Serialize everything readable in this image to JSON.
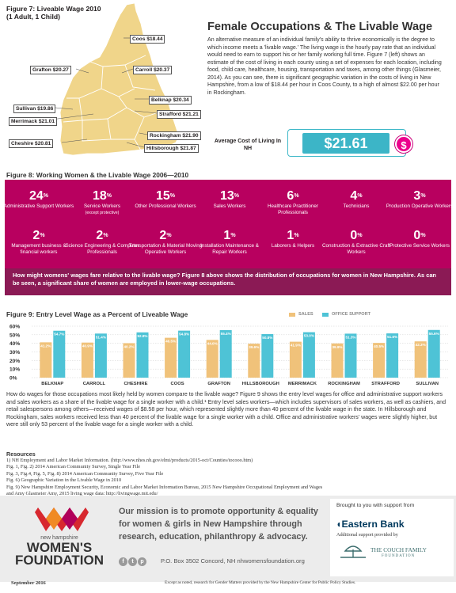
{
  "map": {
    "title_line1": "Figure 7: Liveable Wage 2010",
    "title_line2": "(1 Adult, 1 Child)",
    "counties": [
      {
        "name": "Coos",
        "label": "Coos $18.44"
      },
      {
        "name": "Grafton",
        "label": "Grafton $20.27"
      },
      {
        "name": "Carroll",
        "label": "Carroll $20.37"
      },
      {
        "name": "Belknap",
        "label": "Belknap $20.34"
      },
      {
        "name": "Sullivan",
        "label": "Sullivan $19.86"
      },
      {
        "name": "Merrimack",
        "label": "Merrimack $21.01"
      },
      {
        "name": "Strafford",
        "label": "Strafford $21.21"
      },
      {
        "name": "Rockingham",
        "label": "Rockingham $21.90"
      },
      {
        "name": "Cheshire",
        "label": "Cheshire $20.81"
      },
      {
        "name": "Hillsborough",
        "label": "Hillsborough $21.87"
      }
    ],
    "map_color": "#f0d58a"
  },
  "article": {
    "title": "Female Occupations & The Livable Wage",
    "body": "An alternative measure of an individual family's ability to thrive economically is the degree to which income meets a 'livable wage.' The living wage is the hourly pay rate that an individual would need to earn to support his or her family working full time. Figure 7 (left) shows an estimate of the cost of living in each county using a set of expenses for each location, including food, child care, healthcare, housing, transportation and taxes, among other things (Glasmeier, 2014). As you can see, there is significant geographic variation in the costs of living in New Hampshire, from a low of $18.44 per hour in Coos County, to a high of almost $22.00 per hour in Rockingham.",
    "avg_label": "Average Cost of Living In NH",
    "avg_value": "$21.61",
    "coin_symbol": "$"
  },
  "fig8": {
    "title": "Figure 8: Working Women & the Livable Wage 2006—2010",
    "occupations": [
      {
        "pct": "24",
        "label": "Administrative Support Workers"
      },
      {
        "pct": "18",
        "label": "Service Workers",
        "sub": "(except protective)"
      },
      {
        "pct": "15",
        "label": "Other Professional Workers"
      },
      {
        "pct": "13",
        "label": "Sales Workers"
      },
      {
        "pct": "6",
        "label": "Healthcare Practitioner Professionals"
      },
      {
        "pct": "4",
        "label": "Technicians"
      },
      {
        "pct": "3",
        "label": "Production Operative Workers"
      },
      {
        "pct": "2",
        "label": "Management business & financial workers"
      },
      {
        "pct": "2",
        "label": "Science Engineering & Computer Professionals"
      },
      {
        "pct": "2",
        "label": "Transportation & Material Moving Operative Workers"
      },
      {
        "pct": "1",
        "label": "Installation Maintenance & Repair Workers"
      },
      {
        "pct": "1",
        "label": "Laborers & Helpers"
      },
      {
        "pct": "0",
        "label": "Construction & Extractive Craft Workers"
      },
      {
        "pct": "0",
        "label": "Protective Service Workers"
      }
    ],
    "pct_symbol": "%",
    "note": "How might womens' wages fare relative to the livable wage? Figure 8 above shows the distribution of occupations for women in New Hampshire. As can be seen, a significant share of women are employed in lower-wage occupations.",
    "bg_color": "#b8005f",
    "note_color": "#8b1a55"
  },
  "chart_data": {
    "type": "bar",
    "title": "Figure 9:  Entry Level Wage as a Percent of Liveable Wage",
    "categories": [
      "BELKNAP",
      "CARROLL",
      "CHESHIRE",
      "COOS",
      "GRAFTON",
      "HILLSBOROUGH",
      "MERRIMACK",
      "ROCKINGHAM",
      "STRAFFORD",
      "SULLIVAN"
    ],
    "series": [
      {
        "name": "SALES",
        "color": "#f0c27a",
        "values": [
          41.2,
          40.9,
          40.2,
          46.5,
          44.0,
          39.6,
          41.9,
          39.9,
          40.5,
          42.3
        ],
        "labels": [
          "41.2%",
          "40.9%",
          "40.2%",
          "46.5%",
          "44.0%",
          "39.6%",
          "41.9%",
          "39.9%",
          "40.5%",
          "42.3%"
        ]
      },
      {
        "name": "OFFICE SUPPORT",
        "color": "#4ec3d6",
        "values": [
          54.7,
          51.4,
          52.8,
          54.8,
          55.4,
          50.8,
          53.0,
          51.3,
          51.6,
          55.6
        ],
        "labels": [
          "54.7%",
          "51.4%",
          "52.8%",
          "54.8%",
          "55.4%",
          "50.8%",
          "53.0%",
          "51.3%",
          "51.6%",
          "55.6%"
        ]
      }
    ],
    "yticks": [
      "60%",
      "50%",
      "40%",
      "30%",
      "20%",
      "10%",
      "0%"
    ],
    "ylim": [
      0,
      60
    ],
    "legend_position": "top-right"
  },
  "paragraph": "How do wages for those occupations most likely held by women compare to the livable wage? Figure 9 shows the entry level wages for office and administrative support workers and sales workers as a share of the livable wage for a single worker with a child.¹ Entry level sales workers—which includes supervisors of sales workers, as well as cashiers, and retail salespersons among others—received wages of $8.58 per hour, which represented slightly more than 40 percent of the livable wage in the state. In Hillsborough and Rockingham, sales workers received less than 40 percent of the livable wage for a single worker with a child. Office and administrative workers' wages were slightly higher, but were still only 53 percent of the livable wage for a single worker with a child.",
  "resources": {
    "title": "Resources",
    "items": [
      "1) NH Employment and Labor Market Information.  (http://www.nhes.nh.gov/elmi/products/2015-oct/Counties/tocooo.htm)",
      "Fig. 1, Fig. 2)  2014 American Community Survey, Single Year File",
      "Fig. 3, Fig.4, Fig. 5, Fig. 8) 2014 American Community Survey, Five Year File",
      "Fig. 6) Geographic Variation in the Livable Wage in 2010",
      "Fig. 9) New Hampshire Employment Security, Economic and Labor Market Information Bureau, 2015 New Hampshire Occupational Employment and Wages",
      "and Amy Glasmeier Amy, 2015 living wage data: http://livingwage.mit.edu/"
    ]
  },
  "footer": {
    "org_line1": "new hampshire",
    "org_line2a": "WOMEN'S",
    "org_line2b": "FOUNDATION",
    "mission": "Our mission is to promote opportunity & equality for women & girls in New Hampshire through research, education, philanthropy & advocacy.",
    "social_icons": [
      "facebook-icon",
      "twitter-icon",
      "pinterest-icon"
    ],
    "social_glyphs": [
      "f",
      "t",
      "p"
    ],
    "address": "P.O. Box 3502  Concord, NH nhwomensfoundation.org",
    "brought_by": "Brought to you with support from",
    "eastern_bank": "Eastern Bank",
    "additional": "Additional support provided by",
    "couch_line1": "THE COUCH FAMILY",
    "couch_line2": "FOUNDATION",
    "date": "September 2016",
    "credit": "Except as noted, research for Gender Matters provided by the New Hampshire Center for Public Policy Studies."
  }
}
